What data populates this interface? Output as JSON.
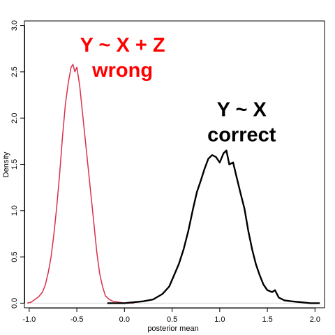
{
  "chart_data": {
    "type": "line",
    "title": "",
    "xlabel": "posterior mean",
    "ylabel": "Density",
    "xlim": [
      -1.05,
      2.1
    ],
    "ylim": [
      -0.05,
      3.05
    ],
    "xticks": [
      -1.0,
      -0.5,
      0.0,
      0.5,
      1.0,
      1.5,
      2.0
    ],
    "xtick_labels": [
      "-1.0",
      "-0.5",
      "0.0",
      "0.5",
      "1.0",
      "1.5",
      "2.0"
    ],
    "yticks": [
      0.0,
      0.5,
      1.0,
      1.5,
      2.0,
      2.5,
      3.0
    ],
    "ytick_labels": [
      "0.0",
      "0.5",
      "1.0",
      "1.5",
      "2.0",
      "2.5",
      "3.0"
    ],
    "baseline": {
      "y": 0,
      "color": "#d9d9d9"
    },
    "series": [
      {
        "name": "Y ~ X + Z (wrong)",
        "color": "#d9304a",
        "width": 1.5,
        "points": [
          [
            -1.02,
            0.0
          ],
          [
            -0.98,
            0.01
          ],
          [
            -0.94,
            0.04
          ],
          [
            -0.9,
            0.07
          ],
          [
            -0.86,
            0.12
          ],
          [
            -0.83,
            0.2
          ],
          [
            -0.8,
            0.33
          ],
          [
            -0.77,
            0.5
          ],
          [
            -0.74,
            0.75
          ],
          [
            -0.71,
            1.05
          ],
          [
            -0.68,
            1.4
          ],
          [
            -0.65,
            1.8
          ],
          [
            -0.62,
            2.15
          ],
          [
            -0.59,
            2.38
          ],
          [
            -0.56,
            2.55
          ],
          [
            -0.54,
            2.58
          ],
          [
            -0.52,
            2.5
          ],
          [
            -0.5,
            2.55
          ],
          [
            -0.47,
            2.35
          ],
          [
            -0.44,
            2.05
          ],
          [
            -0.41,
            1.75
          ],
          [
            -0.38,
            1.45
          ],
          [
            -0.35,
            1.15
          ],
          [
            -0.32,
            0.85
          ],
          [
            -0.29,
            0.55
          ],
          [
            -0.26,
            0.32
          ],
          [
            -0.23,
            0.18
          ],
          [
            -0.2,
            0.08
          ],
          [
            -0.16,
            0.04
          ],
          [
            -0.12,
            0.02
          ],
          [
            -0.06,
            0.01
          ],
          [
            0.0,
            0.0
          ],
          [
            0.06,
            0.0
          ],
          [
            0.1,
            0.0
          ]
        ]
      },
      {
        "name": "Y ~ X (correct)",
        "color": "#000000",
        "width": 2.4,
        "points": [
          [
            -0.18,
            0.0
          ],
          [
            -0.1,
            0.0
          ],
          [
            0.0,
            0.0
          ],
          [
            0.1,
            0.01
          ],
          [
            0.2,
            0.02
          ],
          [
            0.3,
            0.04
          ],
          [
            0.4,
            0.1
          ],
          [
            0.47,
            0.18
          ],
          [
            0.52,
            0.3
          ],
          [
            0.57,
            0.42
          ],
          [
            0.62,
            0.58
          ],
          [
            0.67,
            0.78
          ],
          [
            0.72,
            1.02
          ],
          [
            0.76,
            1.2
          ],
          [
            0.8,
            1.32
          ],
          [
            0.84,
            1.45
          ],
          [
            0.88,
            1.56
          ],
          [
            0.92,
            1.6
          ],
          [
            0.96,
            1.58
          ],
          [
            1.0,
            1.52
          ],
          [
            1.04,
            1.62
          ],
          [
            1.07,
            1.65
          ],
          [
            1.1,
            1.5
          ],
          [
            1.14,
            1.52
          ],
          [
            1.18,
            1.35
          ],
          [
            1.22,
            1.18
          ],
          [
            1.26,
            1.02
          ],
          [
            1.3,
            0.78
          ],
          [
            1.34,
            0.58
          ],
          [
            1.38,
            0.42
          ],
          [
            1.42,
            0.3
          ],
          [
            1.46,
            0.2
          ],
          [
            1.5,
            0.14
          ],
          [
            1.55,
            0.12
          ],
          [
            1.58,
            0.14
          ],
          [
            1.62,
            0.06
          ],
          [
            1.68,
            0.03
          ],
          [
            1.75,
            0.02
          ],
          [
            1.85,
            0.01
          ],
          [
            1.95,
            0.0
          ],
          [
            2.05,
            0.0
          ]
        ]
      }
    ],
    "annotations": [
      {
        "lines": [
          "Y ~ X + Z",
          "wrong"
        ],
        "color": "#ff0000",
        "x": -0.02,
        "y": 2.72
      },
      {
        "lines": [
          "Y ~ X",
          "correct"
        ],
        "color": "#000000",
        "x": 1.23,
        "y": 2.02
      }
    ]
  }
}
